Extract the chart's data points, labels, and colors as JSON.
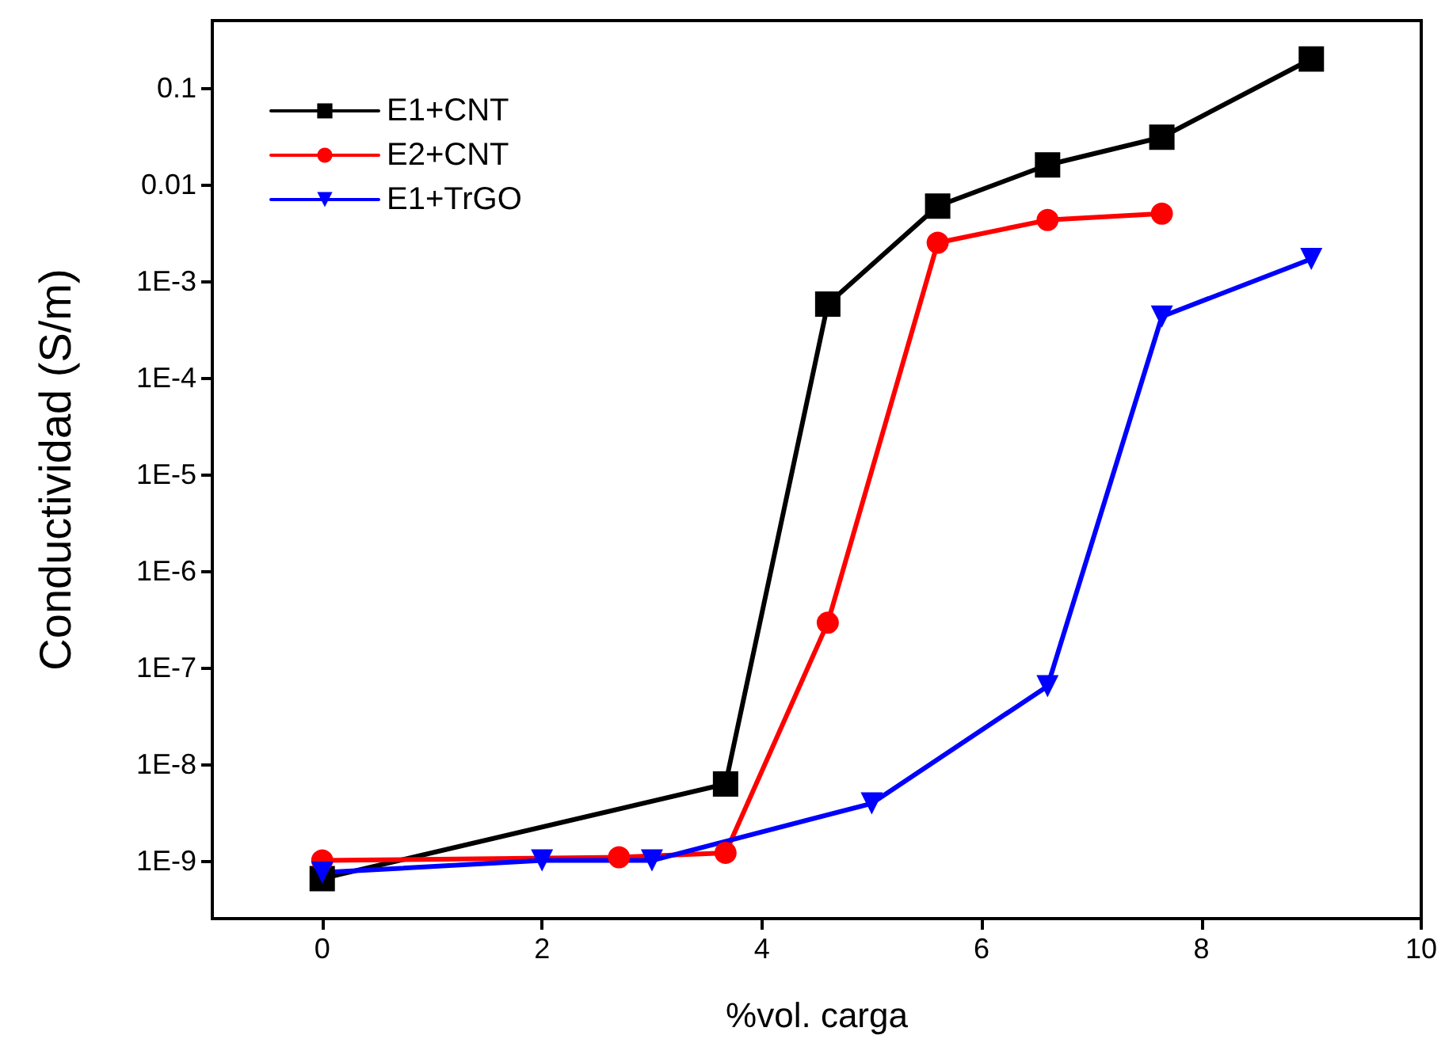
{
  "chart_data": {
    "type": "line",
    "xlabel": "%vol. carga",
    "ylabel": "Conductividad (S/m)",
    "xlim": [
      -1,
      10
    ],
    "xticks": [
      0,
      2,
      4,
      6,
      8,
      10
    ],
    "ylim": [
      2.5e-10,
      0.5
    ],
    "yticks": [
      {
        "value": 1e-09,
        "label": "1E-9"
      },
      {
        "value": 1e-08,
        "label": "1E-8"
      },
      {
        "value": 1e-07,
        "label": "1E-7"
      },
      {
        "value": 1e-06,
        "label": "1E-6"
      },
      {
        "value": 1e-05,
        "label": "1E-5"
      },
      {
        "value": 0.0001,
        "label": "1E-4"
      },
      {
        "value": 0.001,
        "label": "1E-3"
      },
      0.01,
      0.1
    ],
    "log": "y",
    "grid": false,
    "legend": "top left",
    "line_style": "solid",
    "series": [
      {
        "name": "E1+CNT",
        "color": "#000000",
        "marker": "square",
        "x": [
          0,
          3.67,
          4.6,
          5.6,
          6.6,
          7.64,
          9
        ],
        "values": [
          6.5e-10,
          6.2e-09,
          0.00058,
          0.006,
          0.016,
          0.031,
          0.2
        ]
      },
      {
        "name": "E2+CNT",
        "color": "#ff0000",
        "marker": "circle",
        "x": [
          0,
          2.7,
          3.67,
          4.6,
          5.6,
          6.6,
          7.64
        ],
        "values": [
          1e-09,
          1.08e-09,
          1.2e-09,
          2.9e-07,
          0.0025,
          0.0043,
          0.005
        ]
      },
      {
        "name": "E1+TrGO",
        "color": "#0000ff",
        "marker": "triangle",
        "x": [
          0,
          2,
          3,
          5,
          6.6,
          7.64,
          9
        ],
        "values": [
          7.5e-10,
          1e-09,
          1e-09,
          3.9e-09,
          6.4e-08,
          0.00043,
          0.0017
        ]
      }
    ]
  }
}
